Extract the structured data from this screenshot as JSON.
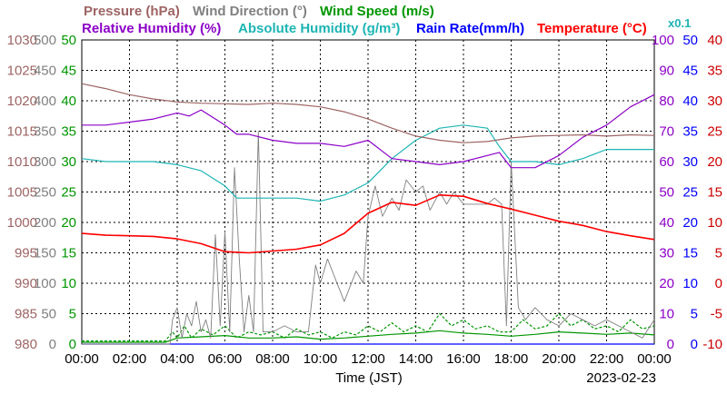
{
  "chart_data": {
    "type": "line",
    "xlabel": "Time (JST)",
    "date": "2023-02-23",
    "xlim": [
      0,
      24
    ],
    "x_ticks": [
      "00:00",
      "02:00",
      "04:00",
      "06:00",
      "08:00",
      "10:00",
      "12:00",
      "14:00",
      "16:00",
      "18:00",
      "20:00",
      "22:00",
      "00:00"
    ],
    "grid": true,
    "legend": {
      "row1": {
        "pressure": "Pressure (hPa)",
        "wind_direction": "Wind Direction (°)",
        "wind_speed": "Wind Speed (m/s)"
      },
      "row2": {
        "humidity": "Relative Humidity (%)",
        "abs_humidity": "Absolute Humidity (g/m³)",
        "abs_humidity_scale": "x0.1",
        "rain_rate": "Rain Rate(mm/h)",
        "temperature": "Temperature (°C)"
      }
    },
    "axes": {
      "pressure": {
        "ticks": [
          "1030",
          "1025",
          "1020",
          "1015",
          "1010",
          "1005",
          "1000",
          "995",
          "990",
          "985",
          "980"
        ],
        "ylim": [
          980,
          1030
        ]
      },
      "wind_direction": {
        "ticks": [
          "500",
          "450",
          "400",
          "350",
          "300",
          "250",
          "200",
          "150",
          "100",
          "50",
          "0"
        ],
        "ylim": [
          0,
          500
        ]
      },
      "wind_speed": {
        "ticks": [
          "50",
          "45",
          "40",
          "35",
          "30",
          "25",
          "20",
          "15",
          "10",
          "5",
          "0"
        ],
        "ylim": [
          0,
          50
        ]
      },
      "humidity": {
        "ticks": [
          "100",
          "90",
          "80",
          "70",
          "60",
          "50",
          "40",
          "30",
          "20",
          "10",
          "0"
        ],
        "ylim": [
          0,
          100
        ]
      },
      "rain_rate": {
        "ticks": [
          "50",
          "45",
          "40",
          "35",
          "30",
          "25",
          "20",
          "15",
          "10",
          "5",
          "0"
        ],
        "ylim": [
          0,
          50
        ]
      },
      "temperature": {
        "ticks": [
          "40",
          "35",
          "30",
          "25",
          "20",
          "15",
          "10",
          "5",
          "0",
          "-5",
          "-10"
        ],
        "ylim": [
          -10,
          40
        ]
      }
    },
    "colors": {
      "pressure": "#9e6464",
      "wind_direction": "#808080",
      "wind_speed": "#009600",
      "humidity": "#8c00c8",
      "abs_humidity": "#1eb4b4",
      "rain_rate": "#0000ff",
      "temperature": "#ff0000",
      "temperature_text": "#cc0000"
    },
    "series": [
      {
        "key": "pressure",
        "axis": "pressure",
        "x": [
          0,
          1,
          2,
          3,
          4,
          5,
          6,
          7,
          8,
          9,
          10,
          11,
          12,
          13,
          14,
          15,
          16,
          17,
          18,
          19,
          20,
          21,
          22,
          23,
          24
        ],
        "y": [
          1022.8,
          1022.0,
          1021.0,
          1020.3,
          1019.8,
          1019.6,
          1019.5,
          1019.4,
          1019.6,
          1019.4,
          1019.0,
          1018.2,
          1017.0,
          1015.5,
          1014.2,
          1013.5,
          1013.1,
          1013.3,
          1013.9,
          1014.2,
          1014.3,
          1014.4,
          1014.2,
          1014.4,
          1014.3
        ]
      },
      {
        "key": "temperature",
        "axis": "temperature",
        "x": [
          0,
          1,
          2,
          3,
          4,
          5,
          6,
          7,
          8,
          9,
          10,
          11,
          12,
          13,
          14,
          15,
          16,
          17,
          18,
          19,
          20,
          21,
          22,
          23,
          24
        ],
        "y": [
          8.2,
          7.9,
          7.8,
          7.7,
          7.3,
          6.5,
          5.2,
          5.0,
          5.3,
          5.6,
          6.3,
          8.2,
          11.5,
          13.3,
          12.8,
          14.5,
          14.3,
          13.1,
          12.2,
          11.2,
          10.2,
          9.5,
          8.5,
          7.8,
          7.2
        ]
      },
      {
        "key": "humidity",
        "axis": "humidity",
        "x": [
          0,
          1,
          2,
          3,
          4,
          4.5,
          5,
          6,
          6.5,
          7,
          8,
          9,
          10,
          11,
          12,
          13,
          14,
          15,
          16,
          17,
          17.5,
          18,
          19,
          20,
          21,
          22,
          23,
          24
        ],
        "y": [
          72,
          72,
          73,
          74,
          76,
          75,
          77,
          72,
          69,
          69,
          67,
          66,
          66,
          65,
          67,
          61,
          60,
          59,
          60,
          62,
          63,
          58,
          58,
          62,
          68,
          72,
          78,
          82
        ]
      },
      {
        "key": "abs_humidity",
        "axis": "humidity",
        "x": [
          0,
          1,
          2,
          3,
          4,
          5,
          6,
          6.5,
          7,
          8,
          9,
          10,
          11,
          12,
          13,
          14,
          15,
          16,
          17,
          17.5,
          18,
          19,
          20,
          21,
          22,
          23,
          24
        ],
        "y": [
          61,
          60,
          60,
          60,
          59,
          57,
          52,
          48,
          48,
          48,
          48,
          47,
          49,
          53,
          61,
          67,
          71,
          72,
          71,
          65,
          60,
          60,
          59,
          61,
          64,
          64,
          64
        ]
      },
      {
        "key": "wind_direction",
        "axis": "wind_direction",
        "x": [
          0,
          3.7,
          3.8,
          4,
          4.2,
          4.4,
          4.6,
          4.8,
          5,
          5.2,
          5.4,
          5.6,
          5.8,
          6,
          6.2,
          6.4,
          6.6,
          6.8,
          7,
          7.2,
          7.4,
          7.6,
          7.8,
          8,
          8.5,
          9,
          9.5,
          9.8,
          10,
          10.3,
          10.6,
          11,
          11.5,
          11.8,
          12,
          12.3,
          12.6,
          13,
          13.3,
          13.6,
          14,
          14.3,
          14.6,
          15,
          15.3,
          15.6,
          16,
          16.5,
          17,
          17.3,
          17.6,
          17.8,
          18,
          18.3,
          18.6,
          19,
          19.5,
          20,
          20.5,
          21,
          21.5,
          22,
          22.5,
          23,
          23.5,
          24
        ],
        "y": [
          0,
          0,
          40,
          60,
          10,
          50,
          30,
          70,
          20,
          40,
          10,
          180,
          30,
          185,
          20,
          290,
          140,
          20,
          80,
          20,
          350,
          20,
          20,
          20,
          30,
          20,
          20,
          130,
          100,
          140,
          110,
          70,
          120,
          100,
          210,
          260,
          210,
          240,
          220,
          270,
          250,
          260,
          220,
          250,
          230,
          250,
          230,
          230,
          230,
          240,
          230,
          30,
          300,
          60,
          40,
          60,
          40,
          30,
          50,
          40,
          30,
          40,
          30,
          20,
          10,
          40
        ]
      },
      {
        "key": "wind_speed",
        "axis": "wind_speed",
        "style": "dashed",
        "x": [
          0,
          3.5,
          3.8,
          4,
          4.3,
          4.6,
          5,
          5.5,
          6,
          6.5,
          7,
          7.5,
          8,
          8.5,
          9,
          9.5,
          10,
          10.5,
          11,
          11.5,
          12,
          12.5,
          13,
          13.5,
          14,
          14.5,
          15,
          15.5,
          16,
          16.5,
          17,
          17.5,
          18,
          18.5,
          19,
          19.5,
          20,
          20.5,
          21,
          21.5,
          22,
          22.5,
          23,
          23.5,
          24
        ],
        "y": [
          0.5,
          0.5,
          2,
          1,
          3,
          1,
          2.5,
          1.5,
          3,
          1,
          2,
          1.5,
          2,
          1,
          2.5,
          1.5,
          2,
          1,
          2,
          1.5,
          3,
          2,
          3.5,
          2,
          3,
          2,
          5,
          3,
          4,
          2.5,
          3,
          2,
          2,
          4,
          2.5,
          3,
          5,
          3,
          4,
          2.5,
          3,
          2,
          4,
          2.5,
          3
        ]
      },
      {
        "key": "wind_speed_avg",
        "axis": "wind_speed",
        "x": [
          0,
          3.5,
          4,
          5,
          6,
          7,
          8,
          9,
          10,
          11,
          12,
          13,
          14,
          15,
          16,
          17,
          18,
          19,
          20,
          21,
          22,
          23,
          24
        ],
        "y": [
          0.3,
          0.3,
          1,
          1.2,
          1.4,
          1,
          1,
          1.2,
          0.8,
          1,
          1.3,
          1.6,
          1.8,
          2.2,
          1.8,
          1.6,
          1.3,
          1.6,
          2,
          1.8,
          1.6,
          1.8,
          1.5
        ]
      },
      {
        "key": "rain_rate",
        "axis": "rain_rate",
        "x": [
          0,
          24
        ],
        "y": [
          0,
          0
        ]
      }
    ]
  }
}
